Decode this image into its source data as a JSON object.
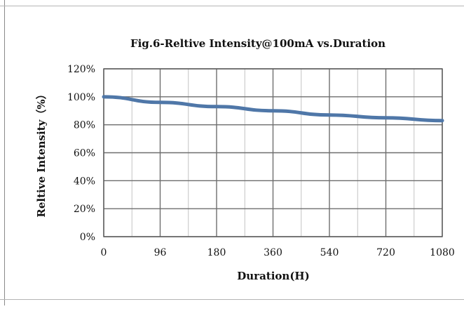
{
  "chart_data": {
    "type": "line",
    "title": "Fig.6-Reltive Intensity@100mA vs.Duration",
    "xlabel": "Duration(H)",
    "ylabel": "Reltive Intensity（%）",
    "categories": [
      "0",
      "96",
      "180",
      "360",
      "540",
      "720",
      "1080"
    ],
    "y_ticks": [
      "0%",
      "20%",
      "40%",
      "60%",
      "80%",
      "100%",
      "120%"
    ],
    "ylim": [
      0,
      120
    ],
    "grid": true,
    "series": [
      {
        "color": "#4f77a8",
        "x": [
          0,
          96,
          180,
          360,
          540,
          720,
          1080
        ],
        "values": [
          100,
          96,
          93,
          90,
          87,
          85,
          83
        ]
      }
    ]
  }
}
